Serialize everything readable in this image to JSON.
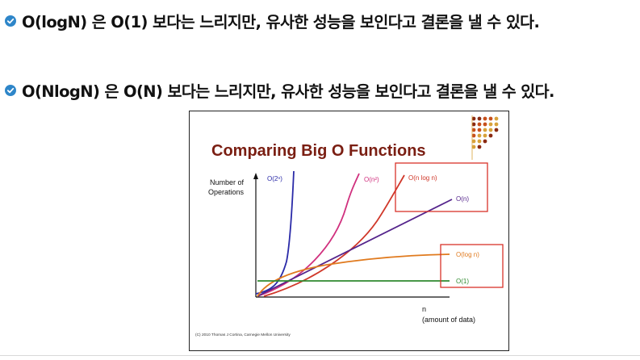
{
  "bullets": [
    {
      "icon": "check-circle-icon",
      "text": "O(logN) 은 O(1) 보다는 느리지만, 유사한 성능을 보인다고 결론을 낼 수 있다."
    },
    {
      "icon": "check-circle-icon",
      "text": "O(NlogN) 은 O(N) 보다는 느리지만, 유사한 성능을 보인다고 결론을 낼 수 있다."
    }
  ],
  "slide": {
    "title": "Comparing Big O Functions",
    "y_label_line1": "Number of",
    "y_label_line2": "Operations",
    "x_label_line1": "n",
    "x_label_line2": "(amount of data)",
    "copyright": "(C) 2010 Thomas J Cortina, Carnegie Mellon University"
  },
  "colors": {
    "bullet_icon": "#2e86c9",
    "title": "#7a1e12",
    "highlight_box": "#d9322a",
    "dots_dark": "#8a2a12",
    "dots_mid": "#c7501c",
    "dots_light": "#d8a23a"
  },
  "chart_data": {
    "type": "line",
    "xlabel": "n (amount of data)",
    "ylabel": "Number of Operations",
    "title": "Comparing Big O Functions",
    "series": [
      {
        "name": "O(2ⁿ)",
        "color": "#2a2aa8",
        "shape": "exponential"
      },
      {
        "name": "O(n²)",
        "color": "#d0307e",
        "shape": "quadratic"
      },
      {
        "name": "O(n log n)",
        "color": "#d0382a",
        "shape": "n-log-n"
      },
      {
        "name": "O(n)",
        "color": "#55258c",
        "shape": "linear"
      },
      {
        "name": "O(log n)",
        "color": "#e07a1e",
        "shape": "logarithmic"
      },
      {
        "name": "O(1)",
        "color": "#2f8a2f",
        "shape": "constant"
      }
    ],
    "highlighted": [
      "O(n log n) & O(n)",
      "O(log n) & O(1)"
    ]
  }
}
